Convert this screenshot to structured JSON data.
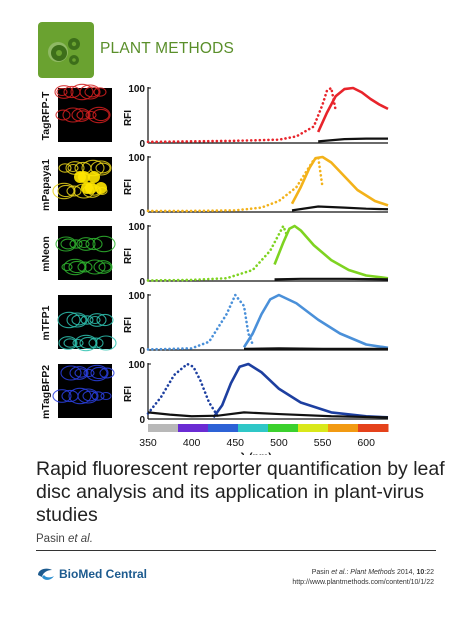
{
  "header": {
    "journal_name": "PLANT METHODS"
  },
  "figure": {
    "panel_labels": [
      "TagRFP-T",
      "mPapaya1",
      "mNeon",
      "mTFP1",
      "mTagBFP2"
    ],
    "panel_colors": [
      "#e8242b",
      "#f3b21a",
      "#7ed321",
      "#4a90d9",
      "#1d3fa0"
    ],
    "image_tints": [
      "#d21e1e",
      "#e8d21a",
      "#2fb52f",
      "#2ec2b0",
      "#2a3fe0"
    ]
  },
  "chart_data": {
    "type": "line",
    "xlabel": "λ (nm)",
    "ylabel": "RFI",
    "xlim": [
      350,
      625
    ],
    "ylim": [
      0,
      100
    ],
    "xticks": [
      350,
      400,
      450,
      500,
      550,
      600
    ],
    "yticks": [
      0,
      100
    ],
    "spectrum_bar": [
      "#b8b8b8",
      "#6a2bd3",
      "#2d62d6",
      "#2fc7c7",
      "#3bd12e",
      "#d9e81a",
      "#f29a12",
      "#e5421b"
    ],
    "panels": [
      {
        "name": "TagRFP-T",
        "excitation": {
          "x": [
            350,
            400,
            450,
            500,
            520,
            540,
            550,
            555,
            560,
            565
          ],
          "y": [
            2,
            3,
            4,
            6,
            12,
            30,
            70,
            95,
            100,
            60
          ]
        },
        "emission": {
          "x": [
            545,
            555,
            565,
            575,
            585,
            595,
            605,
            615,
            625
          ],
          "y": [
            20,
            55,
            85,
            98,
            100,
            92,
            80,
            70,
            62
          ]
        },
        "background": {
          "x": [
            545,
            575,
            600,
            625
          ],
          "y": [
            3,
            7,
            8,
            8
          ]
        }
      },
      {
        "name": "mPapaya1",
        "excitation": {
          "x": [
            350,
            400,
            450,
            480,
            500,
            520,
            530,
            540,
            545,
            550
          ],
          "y": [
            2,
            2,
            3,
            8,
            20,
            45,
            70,
            95,
            100,
            45
          ]
        },
        "emission": {
          "x": [
            515,
            525,
            535,
            542,
            550,
            560,
            575,
            590,
            610,
            625
          ],
          "y": [
            15,
            45,
            80,
            98,
            100,
            90,
            65,
            40,
            20,
            12
          ]
        },
        "background": {
          "x": [
            515,
            545,
            575,
            600,
            625
          ],
          "y": [
            3,
            10,
            8,
            6,
            5
          ]
        }
      },
      {
        "name": "mNeon",
        "excitation": {
          "x": [
            350,
            400,
            440,
            470,
            490,
            500,
            505,
            510
          ],
          "y": [
            1,
            2,
            5,
            20,
            55,
            85,
            100,
            80
          ]
        },
        "emission": {
          "x": [
            495,
            505,
            512,
            518,
            525,
            540,
            560,
            580,
            600,
            625
          ],
          "y": [
            30,
            70,
            95,
            100,
            92,
            65,
            38,
            20,
            10,
            5
          ]
        },
        "background": {
          "x": [
            495,
            525,
            575,
            625
          ],
          "y": [
            3,
            4,
            4,
            3
          ]
        }
      },
      {
        "name": "mTFP1",
        "excitation": {
          "x": [
            350,
            400,
            420,
            440,
            450,
            460,
            465,
            470
          ],
          "y": [
            1,
            3,
            15,
            65,
            100,
            80,
            30,
            10
          ]
        },
        "emission": {
          "x": [
            460,
            470,
            480,
            490,
            500,
            520,
            545,
            570,
            600,
            625
          ],
          "y": [
            5,
            30,
            65,
            92,
            100,
            85,
            55,
            30,
            10,
            4
          ]
        },
        "background": {
          "x": [
            460,
            500,
            550,
            625
          ],
          "y": [
            2,
            3,
            2,
            2
          ]
        }
      },
      {
        "name": "mTagBFP2",
        "excitation": {
          "x": [
            350,
            365,
            380,
            395,
            402,
            410,
            420,
            430
          ],
          "y": [
            10,
            40,
            80,
            100,
            95,
            70,
            30,
            5
          ]
        },
        "emission": {
          "x": [
            425,
            435,
            445,
            455,
            465,
            480,
            500,
            525,
            560,
            600,
            625
          ],
          "y": [
            3,
            25,
            65,
            95,
            100,
            85,
            55,
            30,
            12,
            5,
            3
          ]
        },
        "background": {
          "x": [
            350,
            375,
            400,
            430,
            460,
            500,
            560,
            625
          ],
          "y": [
            12,
            8,
            5,
            6,
            12,
            9,
            5,
            3
          ]
        }
      }
    ]
  },
  "article": {
    "title": "Rapid fluorescent reporter quantification by leaf disc analysis and its application in plant-virus studies",
    "authors_name": "Pasin",
    "authors_etal": "et al."
  },
  "footer": {
    "publisher": "BioMed Central",
    "citation_author": "Pasin ",
    "citation_etal": "et al.",
    "citation_journal": "Plant Methods",
    "citation_year_vol": " 2014, ",
    "citation_volume": "10",
    "citation_pages": ":22",
    "citation_url": "http://www.plantmethods.com/content/10/1/22"
  }
}
